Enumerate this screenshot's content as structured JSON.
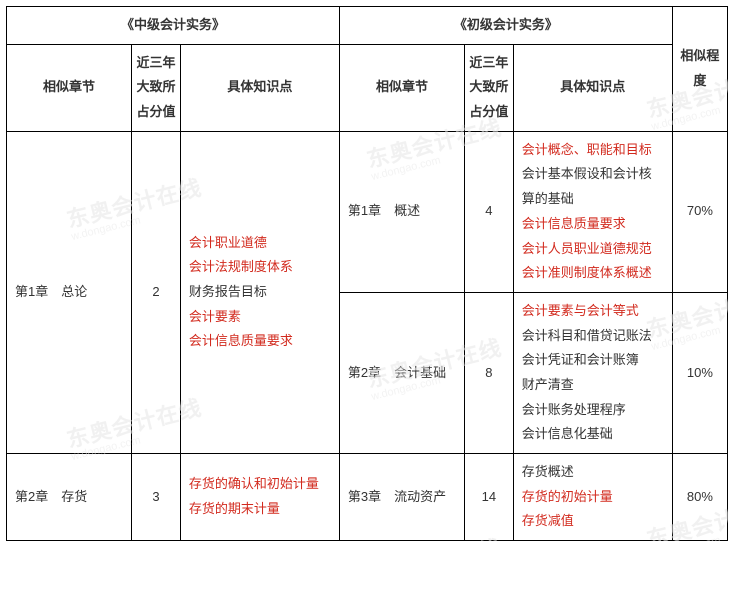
{
  "headers": {
    "group_mid": "《中级会计实务》",
    "group_pri": "《初级会计实务》",
    "chapter": "相似章节",
    "score": "近三年大致所占分值",
    "points": "具体知识点",
    "similarity": "相似程度"
  },
  "rows": {
    "r1": {
      "mid_chapter": "第1章　总论",
      "mid_score": "2",
      "mid_points": [
        {
          "t": "会计职业道德",
          "c": "red"
        },
        {
          "t": "会计法规制度体系",
          "c": "red"
        },
        {
          "t": "财务报告目标",
          "c": "black"
        },
        {
          "t": "会计要素",
          "c": "red"
        },
        {
          "t": "会计信息质量要求",
          "c": "red"
        }
      ],
      "p1": {
        "chapter": "第1章　概述",
        "score": "4",
        "points": [
          {
            "t": "会计概念、职能和目标",
            "c": "red"
          },
          {
            "t": "会计基本假设和会计核算的基础",
            "c": "black"
          },
          {
            "t": "会计信息质量要求",
            "c": "red"
          },
          {
            "t": "会计人员职业道德规范",
            "c": "red"
          },
          {
            "t": "会计准则制度体系概述",
            "c": "red"
          }
        ],
        "similarity": "70%"
      },
      "p2": {
        "chapter": "第2章　会计基础",
        "score": "8",
        "points": [
          {
            "t": "会计要素与会计等式",
            "c": "red"
          },
          {
            "t": "会计科目和借贷记账法",
            "c": "black"
          },
          {
            "t": "会计凭证和会计账簿",
            "c": "black"
          },
          {
            "t": "财产清查",
            "c": "black"
          },
          {
            "t": "会计账务处理程序",
            "c": "black"
          },
          {
            "t": "会计信息化基础",
            "c": "black"
          }
        ],
        "similarity": "10%"
      }
    },
    "r2": {
      "mid_chapter": "第2章　存货",
      "mid_score": "3",
      "mid_points": [
        {
          "t": "存货的确认和初始计量",
          "c": "red"
        },
        {
          "t": "存货的期末计量",
          "c": "red"
        }
      ],
      "pri_chapter": "第3章　流动资产",
      "pri_score": "14",
      "pri_points": [
        {
          "t": "存货概述",
          "c": "black"
        },
        {
          "t": "存货的初始计量",
          "c": "red"
        },
        {
          "t": "存货减值",
          "c": "red"
        }
      ],
      "similarity": "80%"
    }
  },
  "watermark": {
    "text": "东奥会计在线",
    "sub": "w.dongao.com"
  }
}
